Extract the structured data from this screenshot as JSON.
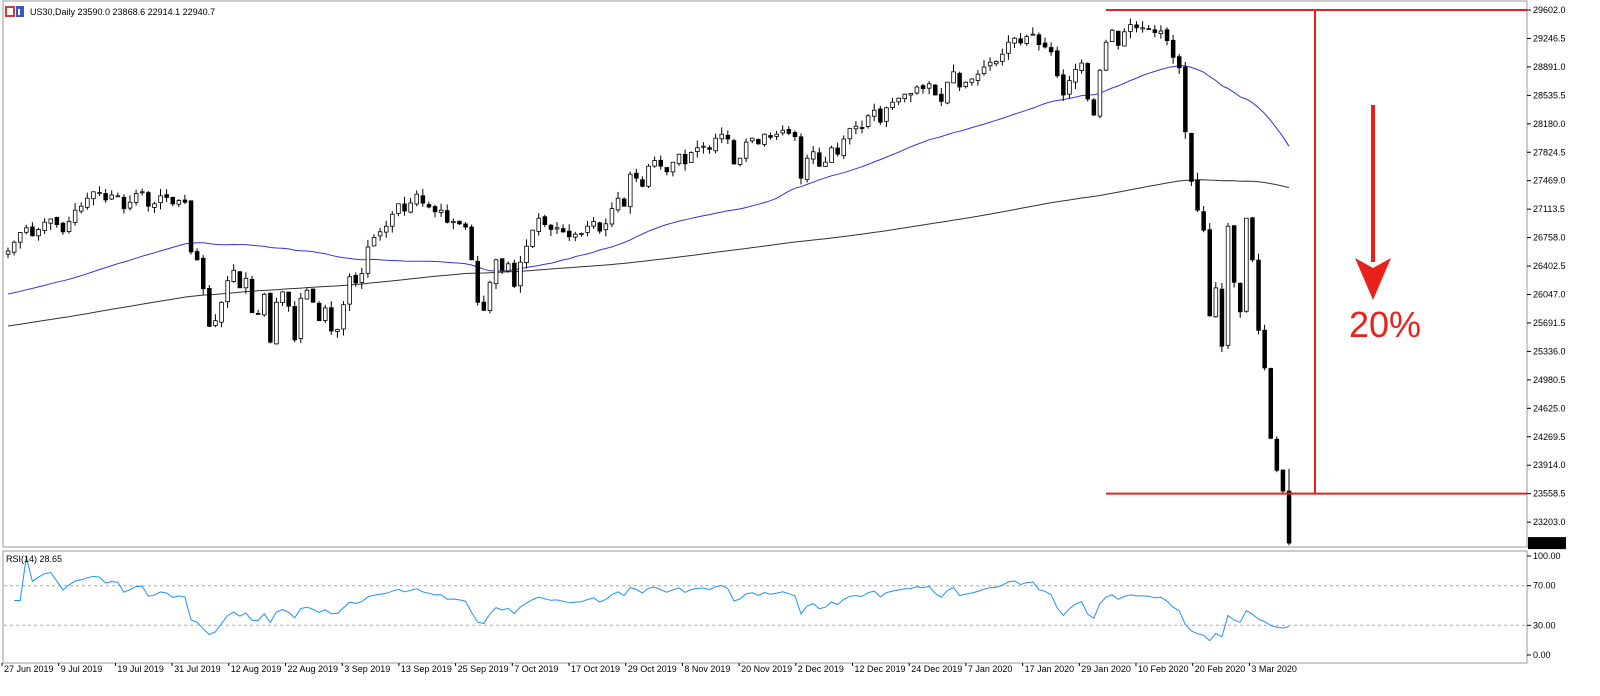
{
  "header": {
    "symbol_info": "US30,Daily  23590.0 23868.6 22914.1 22940.7",
    "icon": "chart-window-icon"
  },
  "chart_data": {
    "type": "candlestick",
    "symbol": "US30",
    "timeframe": "Daily",
    "last_bar_ohlc": {
      "open": 23590.0,
      "high": 23868.6,
      "low": 22914.1,
      "close": 22940.7
    },
    "current_price_label": "22940.7",
    "y_ticks": [
      "29602.0",
      "29246.5",
      "28891.0",
      "28535.5",
      "28180.0",
      "27824.5",
      "27469.0",
      "27113.5",
      "26758.0",
      "26402.5",
      "26047.0",
      "25691.5",
      "25336.0",
      "24980.5",
      "24625.0",
      "24269.5",
      "23914.0",
      "23558.5",
      "23203.0"
    ],
    "ylim": [
      22940.7,
      29602.0
    ],
    "x_ticks": [
      "27 Jun 2019",
      "9 Jul 2019",
      "19 Jul 2019",
      "31 Jul 2019",
      "12 Aug 2019",
      "22 Aug 2019",
      "3 Sep 2019",
      "13 Sep 2019",
      "25 Sep 2019",
      "7 Oct 2019",
      "17 Oct 2019",
      "29 Oct 2019",
      "8 Nov 2019",
      "20 Nov 2019",
      "2 Dec 2019",
      "12 Dec 2019",
      "24 Dec 2019",
      "7 Jan 2020",
      "17 Jan 2020",
      "29 Jan 2020",
      "10 Feb 2020",
      "20 Feb 2020",
      "3 Mar 2020"
    ],
    "closes": [
      26590,
      26700,
      26820,
      26880,
      26780,
      26860,
      26950,
      26990,
      26920,
      26830,
      26960,
      27100,
      27150,
      27250,
      27330,
      27320,
      27230,
      27290,
      27280,
      27120,
      27200,
      27310,
      27330,
      27150,
      27180,
      27280,
      27260,
      27180,
      27220,
      27200,
      26580,
      26480,
      26120,
      25650,
      25720,
      25950,
      26220,
      26350,
      26130,
      26250,
      25820,
      25800,
      26050,
      25450,
      25950,
      26080,
      25900,
      25480,
      26000,
      26100,
      25950,
      25720,
      25880,
      25590,
      25610,
      25920,
      26270,
      26190,
      26310,
      26640,
      26760,
      26830,
      26900,
      27050,
      27180,
      27090,
      27190,
      27300,
      27190,
      27140,
      27080,
      27100,
      26950,
      26960,
      26930,
      26890,
      26480,
      25950,
      25850,
      26200,
      26480,
      26350,
      26430,
      26150,
      26450,
      26650,
      26850,
      27000,
      26920,
      26860,
      26880,
      26830,
      26770,
      26800,
      26810,
      26900,
      26960,
      26840,
      26930,
      27120,
      27250,
      27150,
      27550,
      27500,
      27400,
      27650,
      27720,
      27650,
      27580,
      27700,
      27800,
      27680,
      27820,
      27880,
      27900,
      27860,
      28000,
      28050,
      27990,
      27680,
      27750,
      27950,
      28000,
      27930,
      28050,
      28010,
      28050,
      28100,
      28060,
      28020,
      27500,
      27750,
      27830,
      27650,
      27700,
      27880,
      27800,
      27990,
      28120,
      28150,
      28130,
      28280,
      28350,
      28200,
      28380,
      28450,
      28500,
      28550,
      28560,
      28640,
      28620,
      28680,
      28540,
      28460,
      28700,
      28830,
      28640,
      28700,
      28740,
      28800,
      28890,
      28950,
      28960,
      29050,
      29200,
      29250,
      29190,
      29270,
      29300,
      29170,
      29140,
      29080,
      28780,
      28540,
      28720,
      28860,
      28940,
      28490,
      28290,
      28850,
      29200,
      29350,
      29160,
      29330,
      29420,
      29380,
      29380,
      29370,
      29320,
      29340,
      29220,
      29010,
      28880,
      28080,
      27460,
      27100,
      26850,
      25780,
      26130,
      25400,
      26900,
      26200,
      25830,
      27000,
      26480,
      25600,
      25130,
      24250,
      23850,
      23590,
      22940
    ],
    "ma_short": {
      "color": "#3333dd",
      "period_label": ""
    },
    "ma_long": {
      "color": "#333333",
      "period_label": ""
    },
    "annotations": {
      "percent_label": "20%",
      "color": "#e8221b",
      "top_level": 29602.0,
      "bottom_level": 23558.5
    },
    "rsi": {
      "label": "RSI(14) 28.65",
      "period": 14,
      "last_value": 28.65,
      "levels": [
        30,
        70
      ],
      "ticks": [
        "100.00",
        "70.00",
        "30.00",
        "0.00"
      ],
      "color": "#1e90ff"
    }
  }
}
